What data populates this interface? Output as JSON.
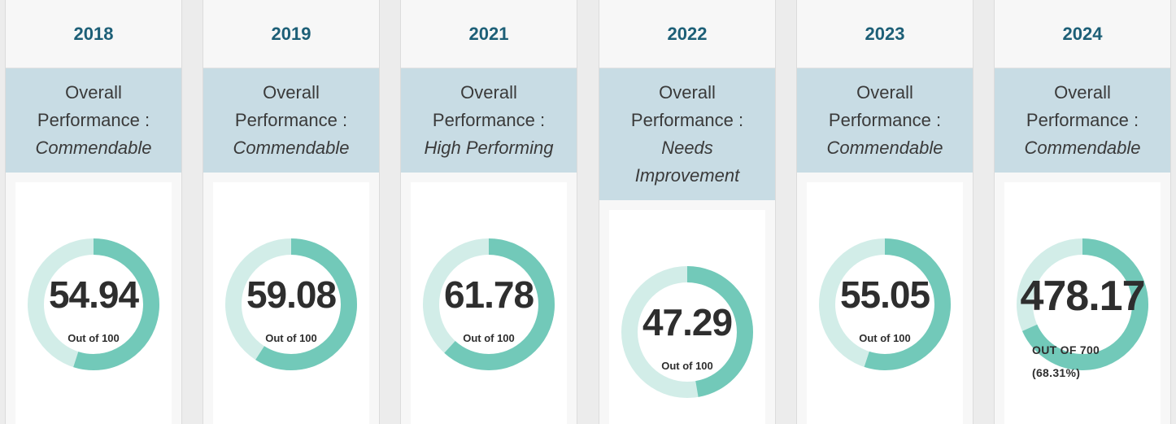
{
  "cards": [
    {
      "year": "2018",
      "label": "Overall",
      "label2": "Performance :",
      "rating": "Commendable",
      "rating2": "",
      "score": "54.94",
      "out_of": "Out of 100",
      "out_of2": "",
      "fraction": 0.5494
    },
    {
      "year": "2019",
      "label": "Overall",
      "label2": "Performance :",
      "rating": "Commendable",
      "rating2": "",
      "score": "59.08",
      "out_of": "Out of 100",
      "out_of2": "",
      "fraction": 0.5908
    },
    {
      "year": "2021",
      "label": "Overall",
      "label2": "Performance :",
      "rating": "High Performing",
      "rating2": "",
      "score": "61.78",
      "out_of": "Out of 100",
      "out_of2": "",
      "fraction": 0.6178
    },
    {
      "year": "2022",
      "label": "Overall",
      "label2": "Performance :",
      "rating": "Needs",
      "rating2": "Improvement",
      "score": "47.29",
      "out_of": "Out of 100",
      "out_of2": "",
      "fraction": 0.4729
    },
    {
      "year": "2023",
      "label": "Overall",
      "label2": "Performance :",
      "rating": "Commendable",
      "rating2": "",
      "score": "55.05",
      "out_of": "Out of 100",
      "out_of2": "",
      "fraction": 0.5505
    },
    {
      "year": "2024",
      "label": "Overall",
      "label2": "Performance :",
      "rating": "Commendable",
      "rating2": "",
      "score": "478.17",
      "out_of": "OUT OF 700",
      "out_of2": "(68.31%)",
      "fraction": 0.6831
    }
  ],
  "colors": {
    "ring_fill": "#72c9b9",
    "ring_track": "#d2ede8",
    "year_text": "#1d5f77",
    "perf_bg": "#c8dce4"
  }
}
